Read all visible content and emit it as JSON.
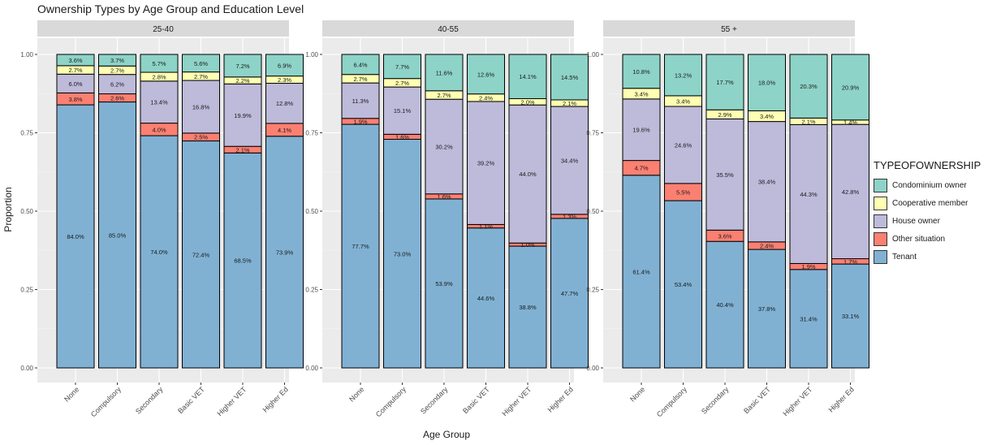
{
  "chart_data": {
    "type": "stacked-bar",
    "title": "Ownership Types by Age Group and Education Level",
    "xlabel": "Age Group",
    "ylabel": "Proportion",
    "ylim": [
      0,
      1
    ],
    "yticks": [
      "0.00",
      "0.25",
      "0.50",
      "0.75",
      "1.00"
    ],
    "grid": true,
    "legend_position": "right",
    "legend_title": "TYPEOFOWNERSHIP",
    "categories": [
      "None",
      "Compulsory",
      "Secondary",
      "Basic VET",
      "Higher VET",
      "Higher Ed"
    ],
    "legend": [
      {
        "name": "Condominium owner",
        "color": "#8dd3c7"
      },
      {
        "name": "Cooperative member",
        "color": "#ffffb3"
      },
      {
        "name": "House owner",
        "color": "#bebada"
      },
      {
        "name": "Other situation",
        "color": "#fb8072"
      },
      {
        "name": "Tenant",
        "color": "#80b1d3"
      }
    ],
    "stack_order_bottom_to_top": [
      "Tenant",
      "Other situation",
      "House owner",
      "Cooperative member",
      "Condominium owner"
    ],
    "facets": [
      {
        "label": "25-40",
        "series": [
          {
            "name": "Tenant",
            "values": [
              84.0,
              85.0,
              74.0,
              72.4,
              68.5,
              73.9
            ],
            "labels": [
              "84.0%",
              "85.0%",
              "74.0%",
              "72.4%",
              "68.5%",
              "73.9%"
            ]
          },
          {
            "name": "Other situation",
            "values": [
              3.8,
              2.6,
              4.0,
              2.5,
              2.1,
              4.1
            ],
            "labels": [
              "3.8%",
              "2.6%",
              "4.0%",
              "2.5%",
              "2.1%",
              "4.1%"
            ]
          },
          {
            "name": "House owner",
            "values": [
              6.0,
              6.2,
              13.4,
              16.8,
              19.9,
              12.8
            ],
            "labels": [
              "6.0%",
              "6.2%",
              "13.4%",
              "16.8%",
              "19.9%",
              "12.8%"
            ]
          },
          {
            "name": "Cooperative member",
            "values": [
              2.7,
              2.7,
              2.8,
              2.7,
              2.2,
              2.3
            ],
            "labels": [
              "2.7%",
              "2.7%",
              "2.8%",
              "2.7%",
              "2.2%",
              "2.3%"
            ]
          },
          {
            "name": "Condominium owner",
            "values": [
              3.6,
              3.7,
              5.7,
              5.6,
              7.2,
              6.9
            ],
            "labels": [
              "3.6%",
              "3.7%",
              "5.7%",
              "5.6%",
              "7.2%",
              "6.9%"
            ]
          }
        ]
      },
      {
        "label": "40-55",
        "series": [
          {
            "name": "Tenant",
            "values": [
              77.7,
              73.0,
              53.9,
              44.6,
              38.8,
              47.7
            ],
            "labels": [
              "77.7%",
              "73.0%",
              "53.9%",
              "44.6%",
              "38.8%",
              "47.7%"
            ]
          },
          {
            "name": "Other situation",
            "values": [
              1.9,
              1.6,
              1.6,
              1.1,
              1.0,
              1.3
            ],
            "labels": [
              "1.9%",
              "1.6%",
              "1.6%",
              "1.1%",
              "1.0%",
              "1.3%"
            ]
          },
          {
            "name": "House owner",
            "values": [
              11.3,
              15.1,
              30.2,
              39.2,
              44.0,
              34.4
            ],
            "labels": [
              "11.3%",
              "15.1%",
              "30.2%",
              "39.2%",
              "44.0%",
              "34.4%"
            ]
          },
          {
            "name": "Cooperative member",
            "values": [
              2.7,
              2.7,
              2.7,
              2.4,
              2.0,
              2.1
            ],
            "labels": [
              "2.7%",
              "2.7%",
              "2.7%",
              "2.4%",
              "2.0%",
              "2.1%"
            ]
          },
          {
            "name": "Condominium owner",
            "values": [
              6.4,
              7.7,
              11.6,
              12.6,
              14.1,
              14.5
            ],
            "labels": [
              "6.4%",
              "7.7%",
              "11.6%",
              "12.6%",
              "14.1%",
              "14.5%"
            ]
          }
        ]
      },
      {
        "label": "55 +",
        "series": [
          {
            "name": "Tenant",
            "values": [
              61.4,
              53.4,
              40.4,
              37.8,
              31.4,
              33.1
            ],
            "labels": [
              "61.4%",
              "53.4%",
              "40.4%",
              "37.8%",
              "31.4%",
              "33.1%"
            ]
          },
          {
            "name": "Other situation",
            "values": [
              4.7,
              5.5,
              3.6,
              2.4,
              1.9,
              1.7
            ],
            "labels": [
              "4.7%",
              "5.5%",
              "3.6%",
              "2.4%",
              "1.9%",
              "1.7%"
            ]
          },
          {
            "name": "House owner",
            "values": [
              19.6,
              24.6,
              35.5,
              38.4,
              44.3,
              42.8
            ],
            "labels": [
              "19.6%",
              "24.6%",
              "35.5%",
              "38.4%",
              "44.3%",
              "42.8%"
            ]
          },
          {
            "name": "Cooperative member",
            "values": [
              3.4,
              3.4,
              2.9,
              3.4,
              2.1,
              1.4
            ],
            "labels": [
              "3.4%",
              "3.4%",
              "2.9%",
              "3.4%",
              "2.1%",
              "1.4%"
            ]
          },
          {
            "name": "Condominium owner",
            "values": [
              10.8,
              13.2,
              17.7,
              18.0,
              20.3,
              20.9
            ],
            "labels": [
              "10.8%",
              "13.2%",
              "17.7%",
              "18.0%",
              "20.3%",
              "20.9%"
            ]
          }
        ]
      }
    ]
  }
}
